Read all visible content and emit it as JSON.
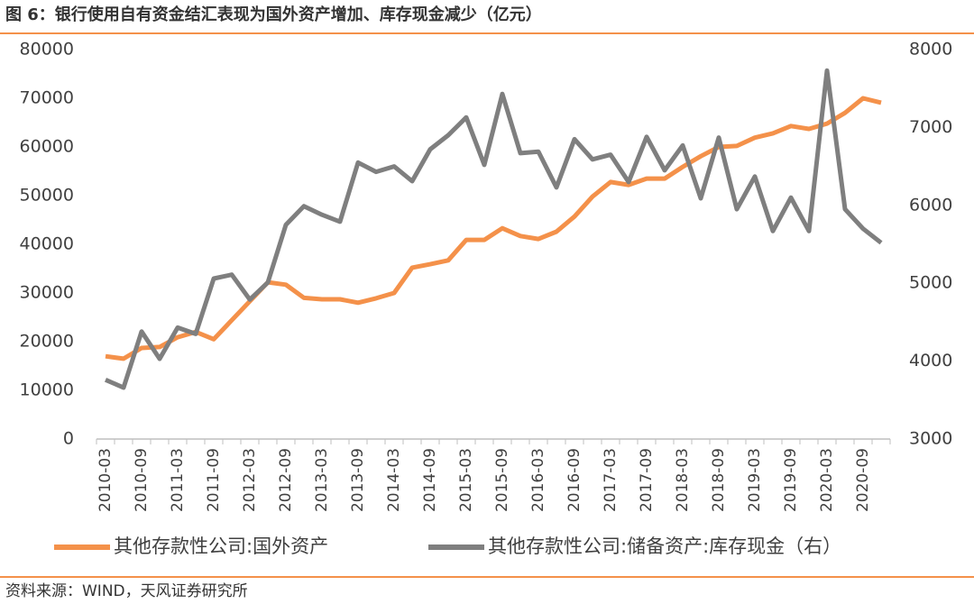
{
  "chart_data": {
    "type": "line",
    "title": "图 6：银行使用自有资金结汇表现为国外资产增加、库存现金减少（亿元）",
    "source": "资料来源：WIND，天风证券研究所",
    "categories": [
      "2010-03",
      null,
      "2010-09",
      null,
      "2011-03",
      null,
      "2011-09",
      null,
      "2012-03",
      null,
      "2012-09",
      null,
      "2013-03",
      null,
      "2013-09",
      null,
      "2014-03",
      null,
      "2014-09",
      null,
      "2015-03",
      null,
      "2015-09",
      null,
      "2016-03",
      null,
      "2016-09",
      null,
      "2017-03",
      null,
      "2017-09",
      null,
      "2018-03",
      null,
      "2018-09",
      null,
      "2019-03",
      null,
      "2019-09",
      null,
      "2020-03",
      null,
      "2020-09",
      null
    ],
    "series": [
      {
        "name": "其他存款性公司:国外资产",
        "color": "#f4914a",
        "values": [
          17000,
          16500,
          18700,
          18900,
          20900,
          22000,
          20500,
          24400,
          28300,
          32200,
          31700,
          29000,
          28700,
          28700,
          28000,
          28900,
          30000,
          35200,
          35900,
          36700,
          40900,
          40900,
          43300,
          41700,
          41100,
          42600,
          45700,
          49800,
          52800,
          52200,
          53500,
          53500,
          55900,
          58100,
          60000,
          60200,
          61900,
          62800,
          64300,
          63700,
          64800,
          67000,
          70000,
          69100
        ]
      },
      {
        "name": "其他存款性公司:储备资产:库存现金（右）",
        "color": "#7f7f7f",
        "axis": "y2",
        "values": [
          3760,
          3660,
          4380,
          4030,
          4430,
          4350,
          5060,
          5110,
          4790,
          5010,
          5750,
          5990,
          5880,
          5790,
          6550,
          6430,
          6500,
          6310,
          6720,
          6900,
          7130,
          6520,
          7430,
          6670,
          6690,
          6230,
          6850,
          6590,
          6650,
          6300,
          6880,
          6450,
          6770,
          6090,
          6870,
          5950,
          6370,
          5670,
          6100,
          5670,
          7730,
          5950,
          5700,
          5520
        ]
      }
    ],
    "ylim": [
      0,
      80000
    ],
    "yticks": [
      0,
      10000,
      20000,
      30000,
      40000,
      50000,
      60000,
      70000,
      80000
    ],
    "y2lim": [
      3000,
      8000
    ],
    "y2ticks": [
      3000,
      4000,
      5000,
      6000,
      7000,
      8000
    ],
    "grid": false
  }
}
